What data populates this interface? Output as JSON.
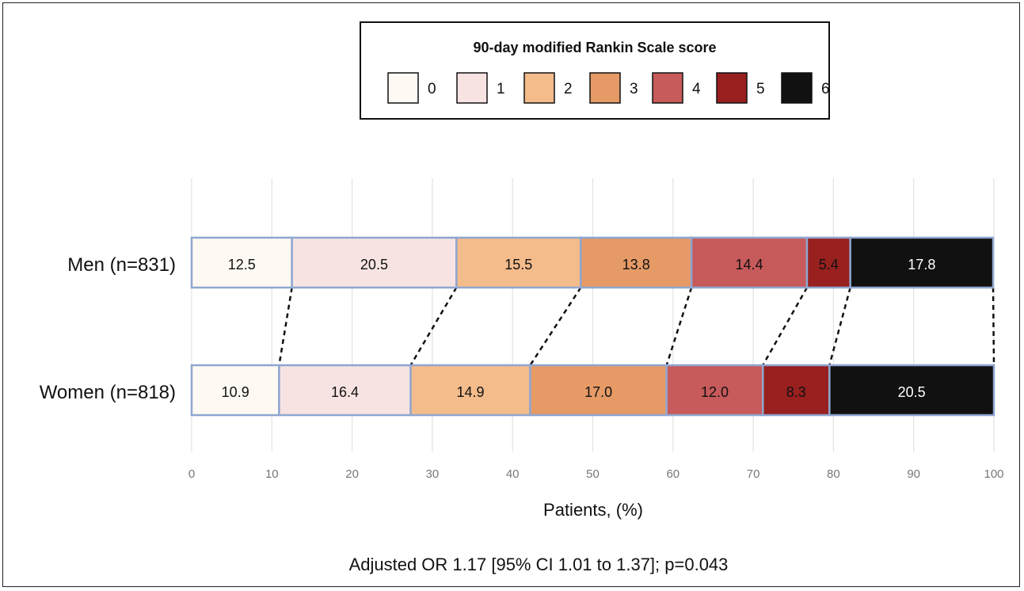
{
  "chart_data": {
    "type": "bar",
    "orientation": "horizontal",
    "stacked": true,
    "legend": {
      "title": "90-day modified Rankin Scale score",
      "placement": "top-center",
      "entries": [
        "0",
        "1",
        "2",
        "3",
        "4",
        "5",
        "6"
      ]
    },
    "colors": [
      "#fefaf3",
      "#f7e4e2",
      "#f4bb8b",
      "#e69a66",
      "#c75a5a",
      "#98201f",
      "#111111"
    ],
    "label_colors": [
      "#111111",
      "#111111",
      "#111111",
      "#111111",
      "#111111",
      "#111111",
      "#ffffff"
    ],
    "categories": [
      "Men (n=831)",
      "Women (n=818)"
    ],
    "series": [
      {
        "name": "0",
        "values": [
          12.5,
          10.9
        ]
      },
      {
        "name": "1",
        "values": [
          20.5,
          16.4
        ]
      },
      {
        "name": "2",
        "values": [
          15.5,
          14.9
        ]
      },
      {
        "name": "3",
        "values": [
          13.8,
          17.0
        ]
      },
      {
        "name": "4",
        "values": [
          14.4,
          12.0
        ]
      },
      {
        "name": "5",
        "values": [
          5.4,
          8.3
        ]
      },
      {
        "name": "6",
        "values": [
          17.8,
          20.5
        ]
      }
    ],
    "data_labels": [
      [
        "12.5",
        "20.5",
        "15.5",
        "13.8",
        "14.4",
        "5.4",
        "17.8"
      ],
      [
        "10.9",
        "16.4",
        "14.9",
        "17.0",
        "12.0",
        "8.3",
        "20.5"
      ]
    ],
    "xlabel": "Patients, (%)",
    "xlim": [
      0,
      100
    ],
    "xticks": [
      0,
      10,
      20,
      30,
      40,
      50,
      60,
      70,
      80,
      90,
      100
    ],
    "grid": true,
    "annotation": "Adjusted OR 1.17 [95% CI 1.01 to 1.37]; p=0.043"
  }
}
